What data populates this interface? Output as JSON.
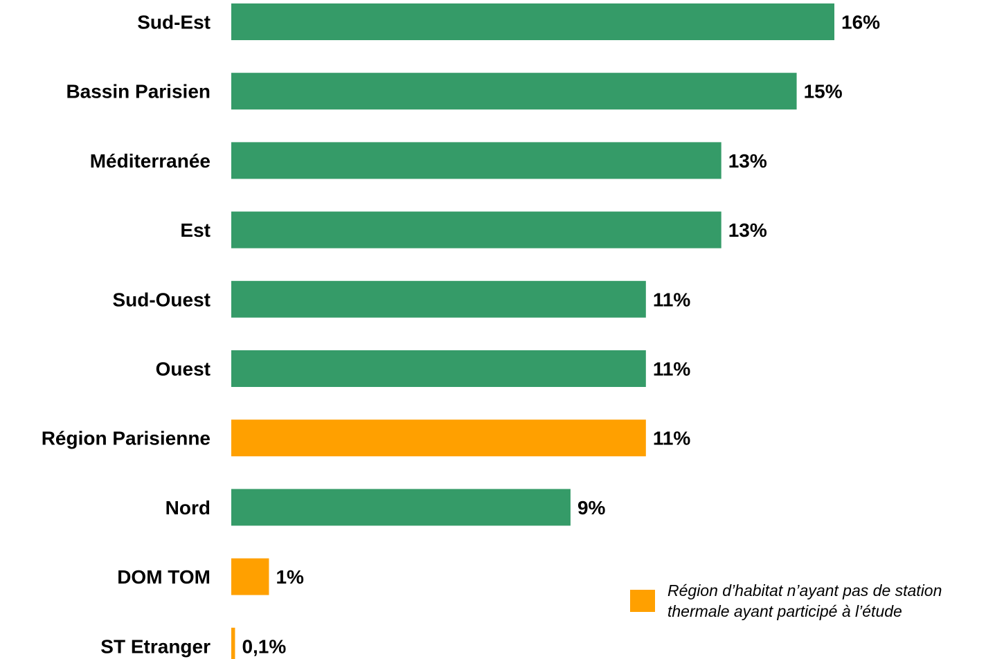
{
  "chart_data": {
    "type": "bar",
    "orientation": "horizontal",
    "categories": [
      "Sud-Est",
      "Bassin Parisien",
      "Méditerranée",
      "Est",
      "Sud-Ouest",
      "Ouest",
      "Région Parisienne",
      "Nord",
      "DOM TOM",
      "ST Etranger"
    ],
    "values": [
      16,
      15,
      13,
      13,
      11,
      11,
      11,
      9,
      1,
      0.1
    ],
    "value_labels": [
      "16%",
      "15%",
      "13%",
      "13%",
      "11%",
      "11%",
      "11%",
      "9%",
      "1%",
      "0,1%"
    ],
    "highlighted": [
      false,
      false,
      false,
      false,
      false,
      false,
      true,
      false,
      true,
      true
    ],
    "colors": {
      "default": "#359b68",
      "highlight": "#ffa000"
    },
    "legend": {
      "text": "Région d’habitat n’ayant pas de station\nthermale ayant participé à l’étude",
      "placement": "bottom-right"
    }
  }
}
